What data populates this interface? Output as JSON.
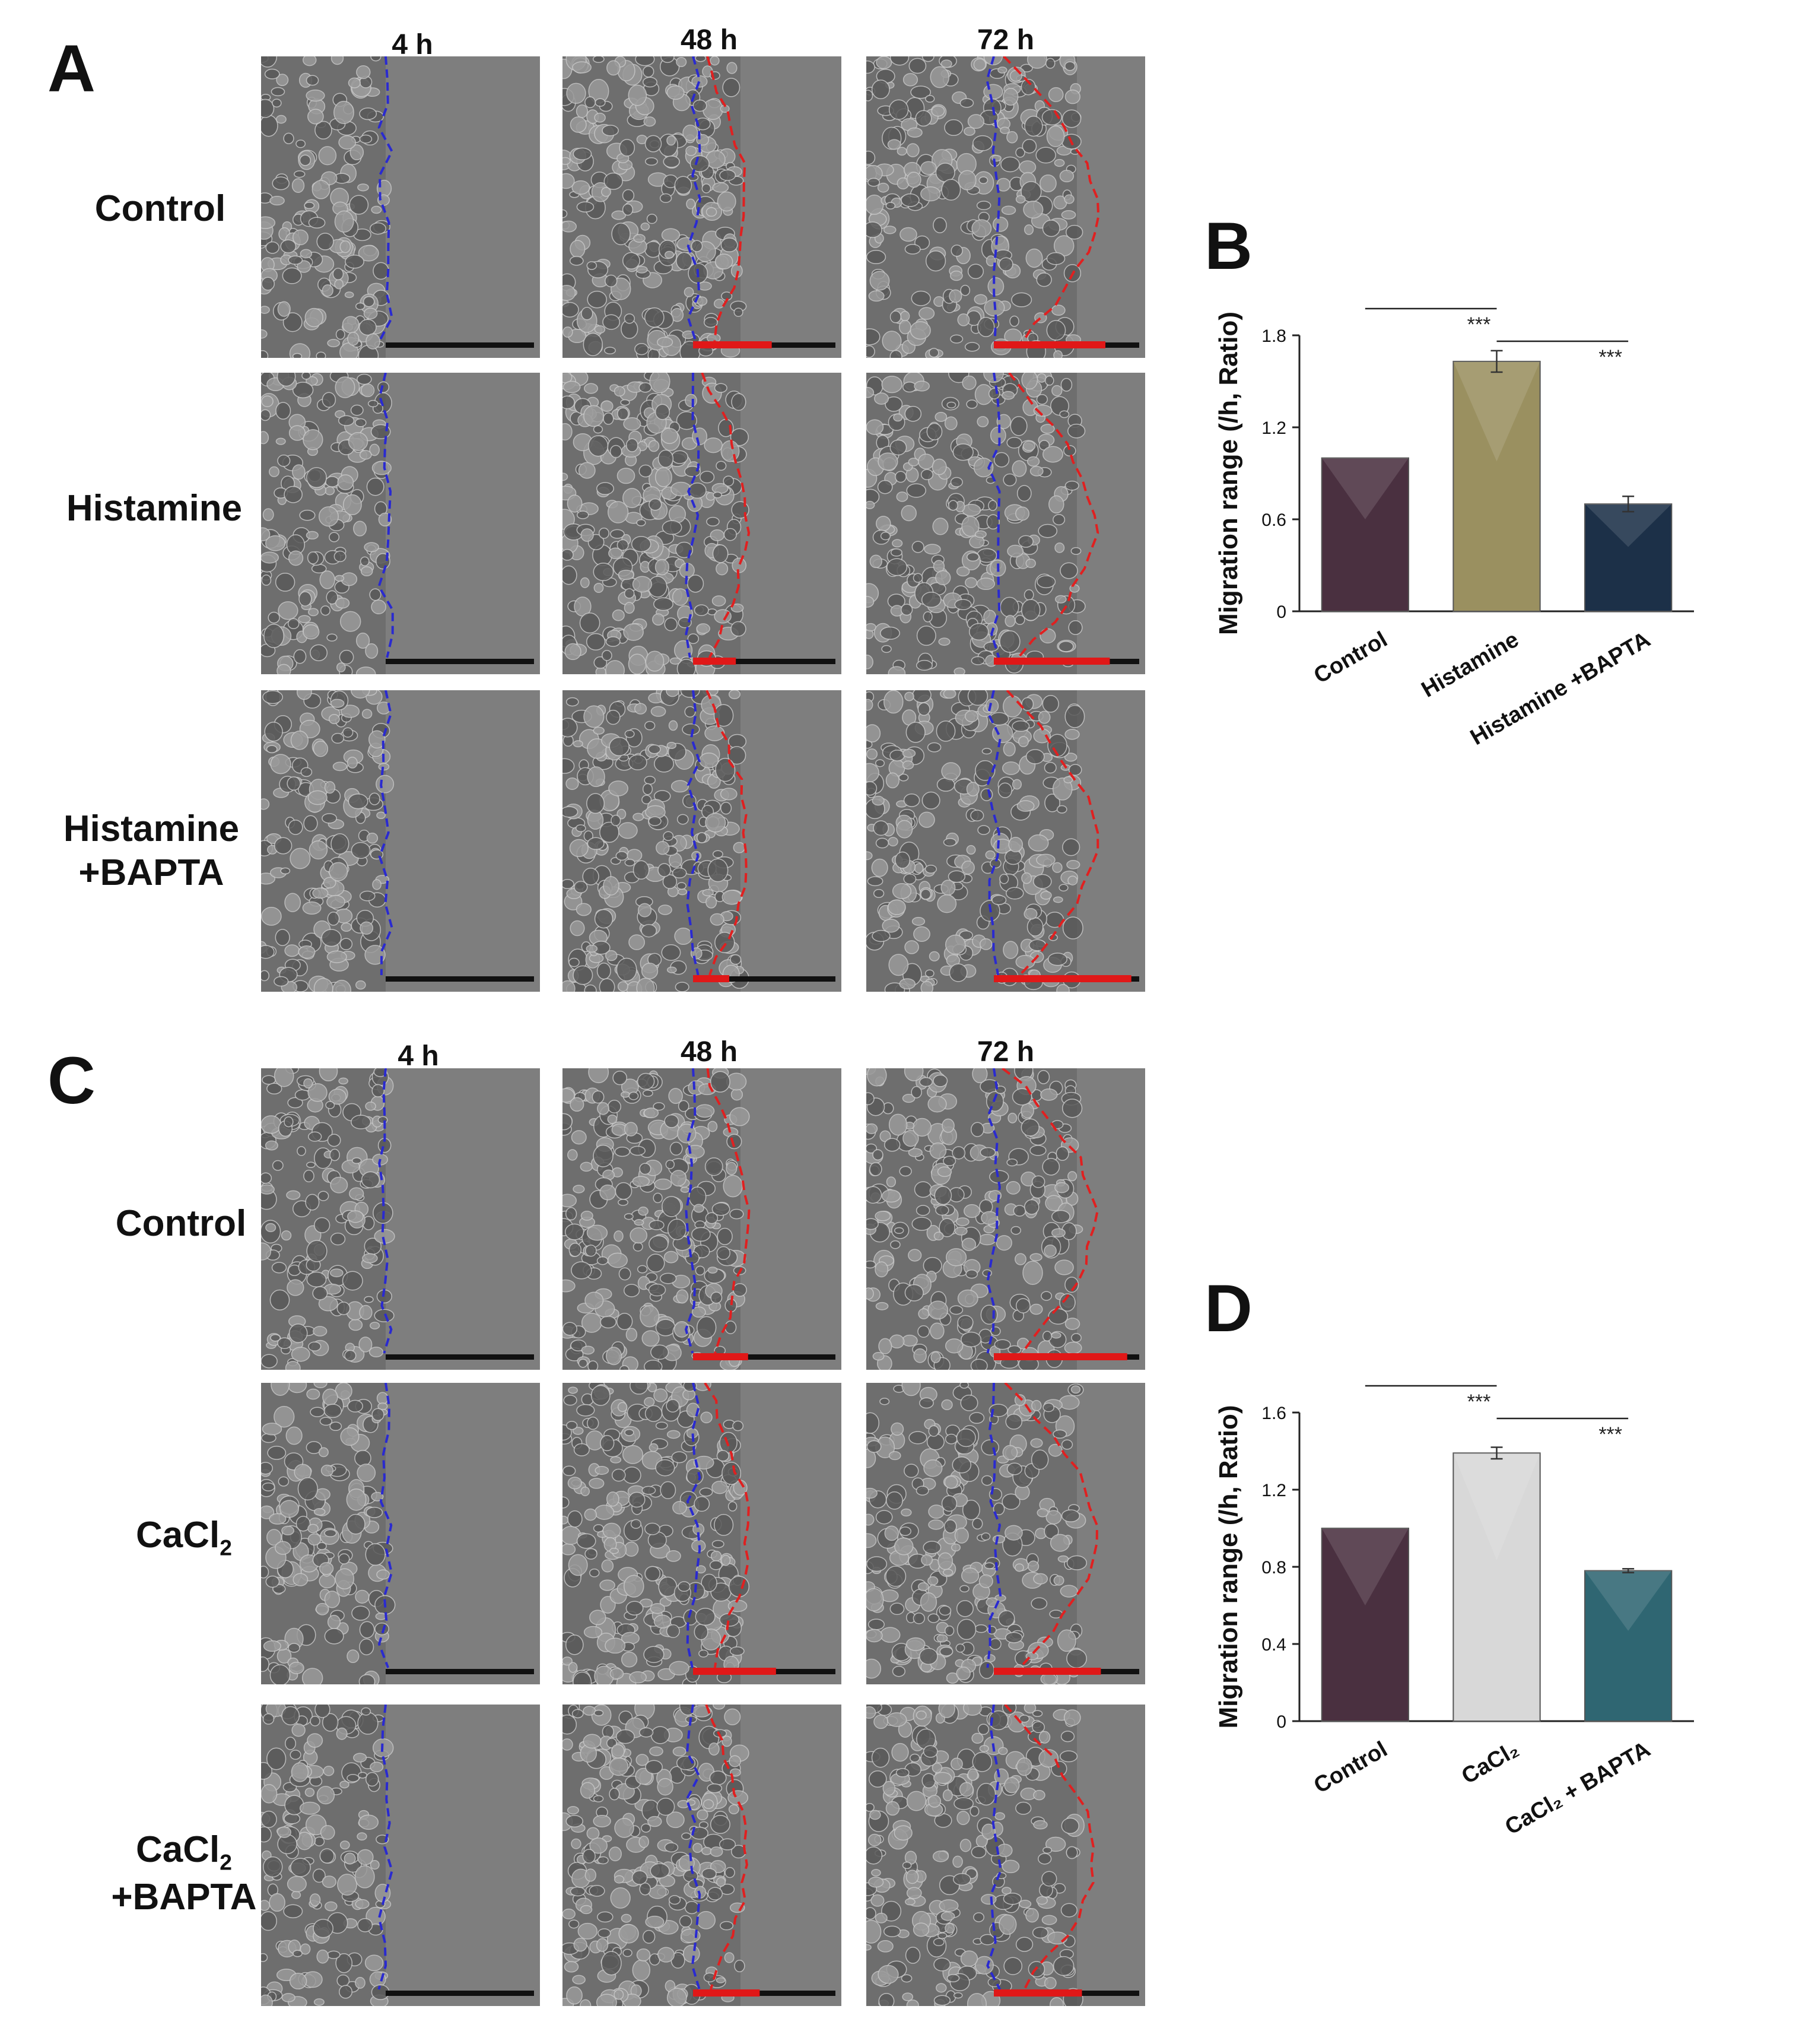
{
  "panels": {
    "A": {
      "letter": "A",
      "times": [
        "4 h",
        "48 h",
        "72 h"
      ],
      "rows": [
        {
          "label": "Control"
        },
        {
          "label": "Histamine"
        },
        {
          "label": "Histamine +BAPTA"
        }
      ]
    },
    "C": {
      "letter": "C",
      "times": [
        "4 h",
        "48 h",
        "72 h"
      ],
      "rows": [
        {
          "label": "Control"
        },
        {
          "label": "CaCl2"
        },
        {
          "label": "CaCl2 +BAPTA"
        }
      ]
    }
  },
  "chart_data": [
    {
      "panel": "B",
      "type": "bar",
      "categories": [
        "Control",
        "Histamine",
        "Histamine +BAPTA"
      ],
      "values": [
        1.0,
        1.63,
        0.7
      ],
      "errors": [
        0,
        0.07,
        0.05
      ],
      "colors": [
        "#4a3040",
        "#9a9060",
        "#1c3048"
      ],
      "ylabel": "Migration range (/h, Ratio)",
      "xlabel": "",
      "ylim": [
        0,
        1.8
      ],
      "yticks": [
        "0",
        "0.6",
        "1.2",
        "1.8"
      ],
      "significance": [
        {
          "from": "Control",
          "to": "Histamine",
          "label": "***"
        },
        {
          "from": "Histamine",
          "to": "Histamine +BAPTA",
          "label": "***"
        }
      ]
    },
    {
      "panel": "D",
      "type": "bar",
      "categories": [
        "Control",
        "CaCl₂",
        "CaCl₂ + BAPTA"
      ],
      "values": [
        1.0,
        1.39,
        0.78
      ],
      "errors": [
        0,
        0.03,
        0.01
      ],
      "colors": [
        "#4a3040",
        "#d8d8d8",
        "#2f6672"
      ],
      "ylabel": "Migration range (/h, Ratio)",
      "xlabel": "",
      "ylim": [
        0,
        1.6
      ],
      "yticks": [
        "0",
        "0.4",
        "0.8",
        "1.2",
        "1.6"
      ],
      "significance": [
        {
          "from": "Control",
          "to": "CaCl₂",
          "label": "***"
        },
        {
          "from": "CaCl₂",
          "to": "CaCl₂ + BAPTA",
          "label": "***"
        }
      ]
    }
  ]
}
